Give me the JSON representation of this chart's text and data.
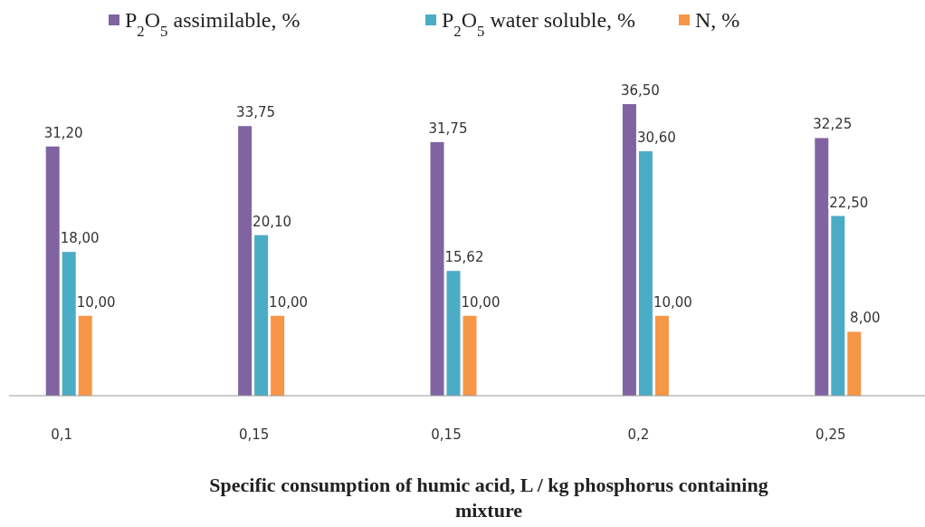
{
  "chart_data": {
    "type": "bar",
    "xlabel": "Specific consumption of humic acid, L / kg phosphorus containing mixture",
    "categories": [
      "0,1",
      "0,15",
      "0,15",
      "0,2",
      "0,25"
    ],
    "legend": "top",
    "series": [
      {
        "name": "P$_{2}$O$_{5}$ assimilable, %",
        "color": "#8064a2",
        "values": [
          31.2,
          33.75,
          31.75,
          36.5,
          32.25
        ],
        "value_labels": [
          "31,20",
          "33,75",
          "31,75",
          "36,50",
          "32,25"
        ]
      },
      {
        "name": "P$_{2}$O$_{5}$ water soluble, %",
        "color": "#4bacc6",
        "values": [
          18.0,
          20.1,
          15.62,
          30.6,
          22.5
        ],
        "value_labels": [
          "18,00",
          "20,10",
          "15,62",
          "30,60",
          "22,50"
        ]
      },
      {
        "name": "N, %",
        "color": "#f79646",
        "values": [
          10.0,
          10.0,
          10.0,
          10.0,
          8.0
        ],
        "value_labels": [
          "10,00",
          "10,00",
          "10,00",
          "10,00",
          "8,00"
        ]
      }
    ]
  }
}
